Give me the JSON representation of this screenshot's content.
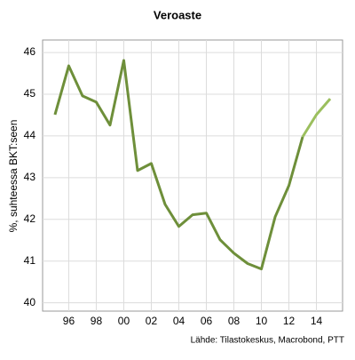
{
  "chart_data": {
    "type": "line",
    "title": "Veroaste",
    "y_label": "%, suhteessa BKT:seen",
    "source": "Lähde: Tilastokeskus, Macrobond, PTT",
    "x": [
      1995,
      1996,
      1997,
      1998,
      1999,
      2000,
      2001,
      2002,
      2003,
      2004,
      2005,
      2006,
      2007,
      2008,
      2009,
      2010,
      2011,
      2012,
      2013,
      2014,
      2015
    ],
    "series": [
      {
        "color": "#6e8f3a",
        "values": [
          44.51,
          45.68,
          44.96,
          44.81,
          44.26,
          45.81,
          43.17,
          43.34,
          42.36,
          41.83,
          42.11,
          42.15,
          41.51,
          41.19,
          40.94,
          40.81,
          42.06,
          42.81,
          43.98,
          null,
          null
        ]
      },
      {
        "color": "#9bbf5e",
        "values": [
          null,
          null,
          null,
          null,
          null,
          null,
          null,
          null,
          null,
          null,
          null,
          null,
          null,
          null,
          null,
          null,
          null,
          null,
          43.98,
          44.51,
          44.89
        ]
      }
    ],
    "xlim": [
      1994.1,
      2015.9
    ],
    "ylim": [
      39.8,
      46.3
    ],
    "xticks": [
      {
        "value": 1996,
        "label": "96"
      },
      {
        "value": 1998,
        "label": "98"
      },
      {
        "value": 2000,
        "label": "00"
      },
      {
        "value": 2002,
        "label": "02"
      },
      {
        "value": 2004,
        "label": "04"
      },
      {
        "value": 2006,
        "label": "06"
      },
      {
        "value": 2008,
        "label": "08"
      },
      {
        "value": 2010,
        "label": "10"
      },
      {
        "value": 2012,
        "label": "12"
      },
      {
        "value": 2014,
        "label": "14"
      }
    ],
    "yticks": [
      40,
      41,
      42,
      43,
      44,
      45,
      46
    ],
    "grid": true
  }
}
